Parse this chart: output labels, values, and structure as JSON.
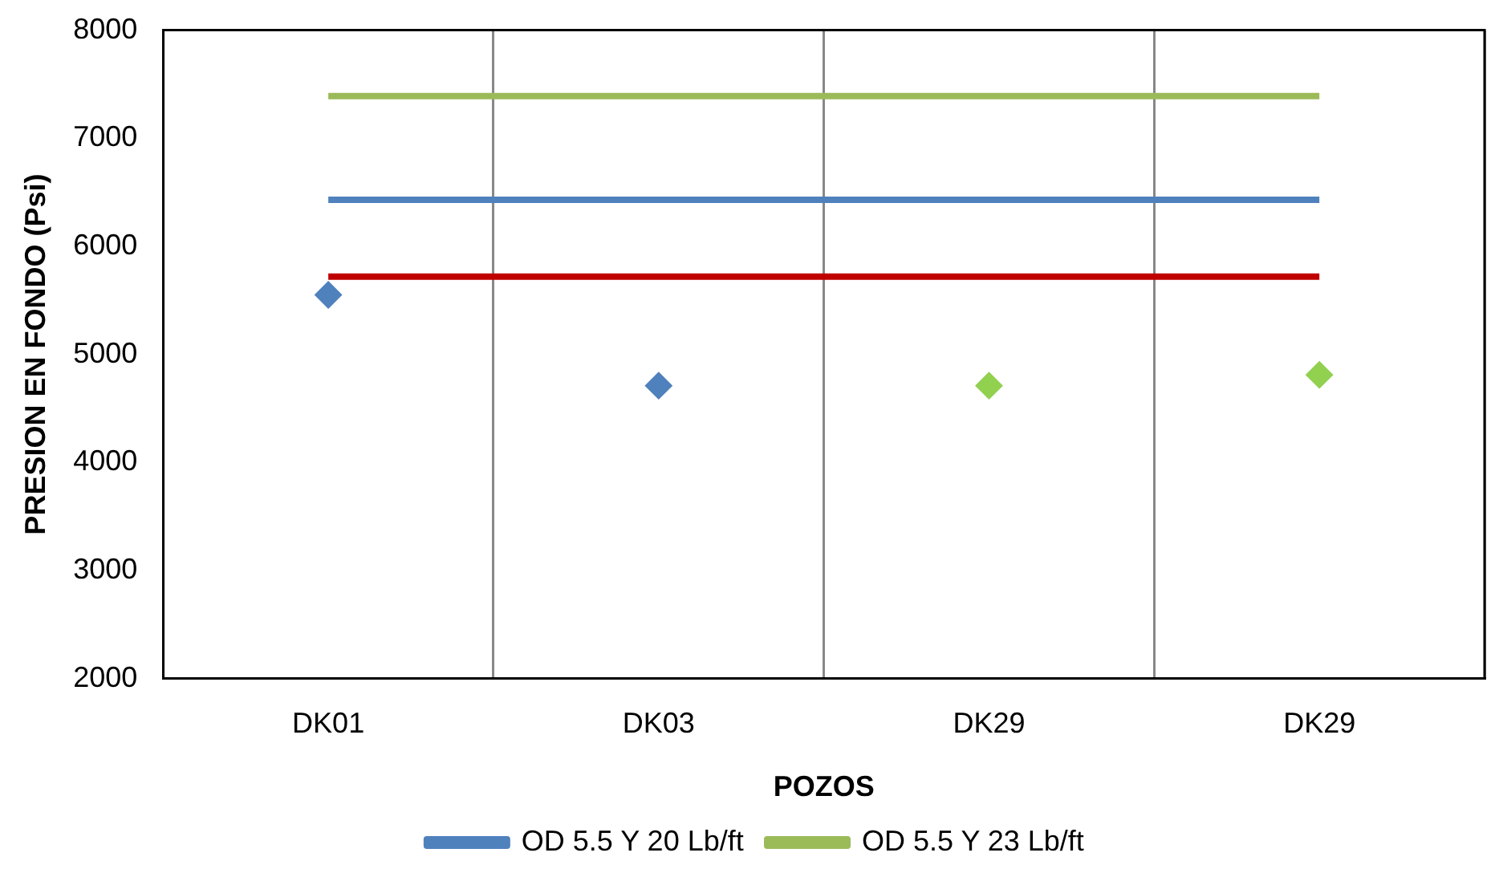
{
  "chart_data": {
    "type": "line",
    "xlabel": "POZOS",
    "ylabel": "PRESION EN FONDO (Psi)",
    "categories": [
      "DK01",
      "DK03",
      "DK29",
      "DK29"
    ],
    "series": [
      {
        "name": "OD 5.5 Y 20 Lb/ft",
        "color": "#4f81bd",
        "values": [
          6430,
          6430,
          6430,
          6430
        ],
        "marker": "none"
      },
      {
        "name": "OD 5.5 Y 23 Lb/ft",
        "color": "#9bbb59",
        "values": [
          7390,
          7390,
          7390,
          7390
        ],
        "marker": "none"
      },
      {
        "color": "#c00000",
        "values": [
          5720,
          5720,
          5720,
          5720
        ],
        "marker": "none"
      },
      {
        "type": "scatter",
        "colors": [
          "#4f81bd",
          "#4f81bd",
          "#92d050",
          "#92d050"
        ],
        "values": [
          5550,
          4710,
          4710,
          4810
        ],
        "marker": "diamond"
      }
    ],
    "ylim": [
      2000,
      8000
    ],
    "yticks": [
      2000,
      3000,
      4000,
      5000,
      6000,
      7000,
      8000
    ],
    "grid": "x",
    "legend": "bottom"
  }
}
